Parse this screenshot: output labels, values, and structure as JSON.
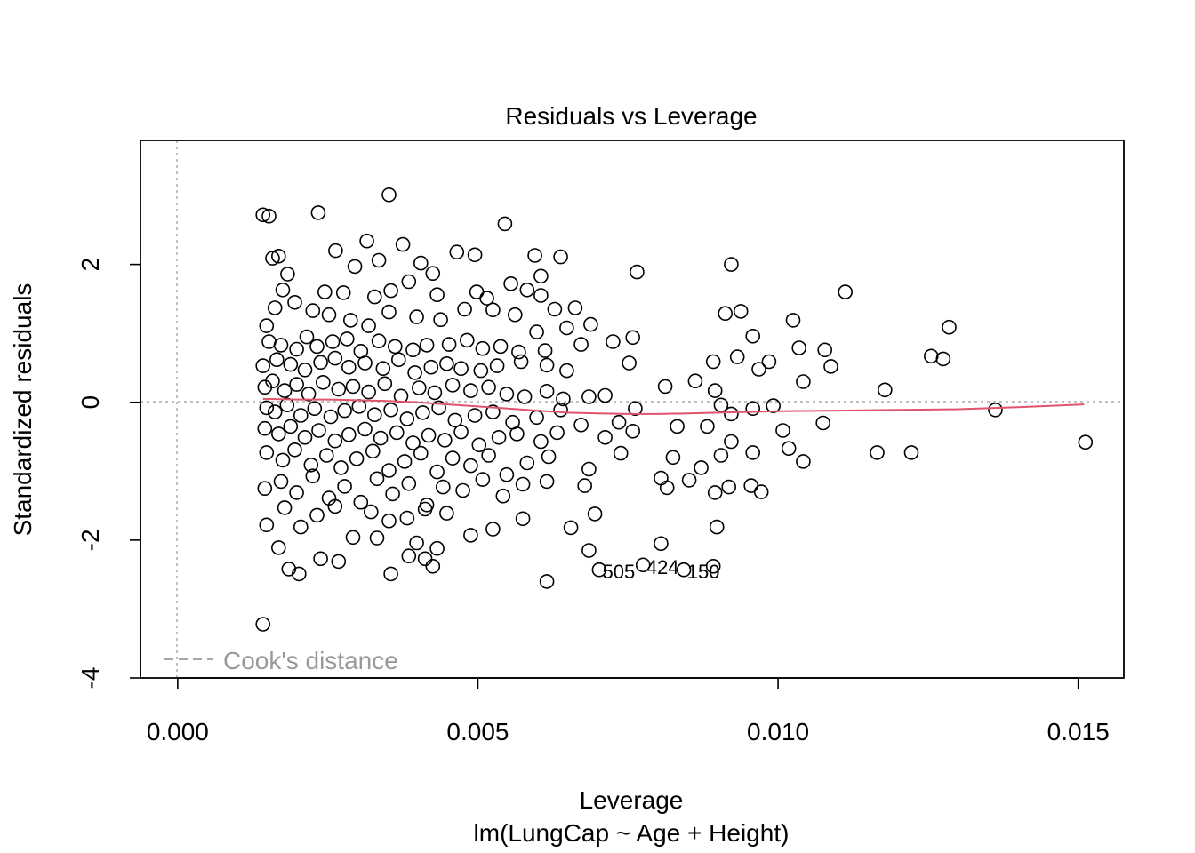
{
  "chart_data": {
    "type": "scatter",
    "title": "Residuals vs Leverage",
    "xlabel": "Leverage",
    "sublabel": "lm(LungCap ~ Age + Height)",
    "ylabel": "Standardized residuals",
    "xlim": [
      -0.00062,
      0.01576
    ],
    "ylim": [
      -4.0,
      3.8
    ],
    "x_ticks": [
      {
        "value": 0.0,
        "label": "0.000"
      },
      {
        "value": 0.005,
        "label": "0.005"
      },
      {
        "value": 0.01,
        "label": "0.010"
      },
      {
        "value": 0.015,
        "label": "0.015"
      }
    ],
    "y_ticks": [
      {
        "value": -4,
        "label": "-4"
      },
      {
        "value": -2,
        "label": "-2"
      },
      {
        "value": 0,
        "label": "0"
      },
      {
        "value": 2,
        "label": "2"
      }
    ],
    "reference_lines": {
      "h": 0,
      "v": 0,
      "color": "#aaaaaa"
    },
    "legend": {
      "label": "Cook's distance",
      "position": "bottom-left",
      "color": "#999999"
    },
    "smooth_color": "#DF536B",
    "smooth": [
      [
        0.00142,
        0.05
      ],
      [
        0.002,
        0.04
      ],
      [
        0.0025,
        0.04
      ],
      [
        0.003,
        0.03
      ],
      [
        0.0035,
        0.02
      ],
      [
        0.004,
        0.0
      ],
      [
        0.0045,
        -0.03
      ],
      [
        0.005,
        -0.06
      ],
      [
        0.0055,
        -0.09
      ],
      [
        0.006,
        -0.12
      ],
      [
        0.0065,
        -0.15
      ],
      [
        0.007,
        -0.16
      ],
      [
        0.0075,
        -0.17
      ],
      [
        0.008,
        -0.17
      ],
      [
        0.0085,
        -0.16
      ],
      [
        0.009,
        -0.15
      ],
      [
        0.0095,
        -0.14
      ],
      [
        0.01,
        -0.13
      ],
      [
        0.011,
        -0.12
      ],
      [
        0.012,
        -0.11
      ],
      [
        0.013,
        -0.1
      ],
      [
        0.014,
        -0.07
      ],
      [
        0.0151,
        -0.03
      ]
    ],
    "labeled_points": [
      {
        "id": "505",
        "x": 0.00702,
        "y": -2.43
      },
      {
        "id": "424",
        "x": 0.00775,
        "y": -2.36
      },
      {
        "id": "150",
        "x": 0.00843,
        "y": -2.43
      }
    ],
    "points": [
      [
        0.00142,
        -3.22
      ],
      [
        0.00142,
        2.72
      ],
      [
        0.00152,
        2.7
      ],
      [
        0.00234,
        2.75
      ],
      [
        0.00352,
        3.01
      ],
      [
        0.00545,
        2.59
      ],
      [
        0.00158,
        2.09
      ],
      [
        0.00168,
        2.12
      ],
      [
        0.00263,
        2.2
      ],
      [
        0.00315,
        2.34
      ],
      [
        0.00375,
        2.29
      ],
      [
        0.00405,
        2.02
      ],
      [
        0.00465,
        2.18
      ],
      [
        0.00495,
        2.14
      ],
      [
        0.00595,
        2.13
      ],
      [
        0.00638,
        2.11
      ],
      [
        0.00765,
        1.89
      ],
      [
        0.00922,
        2.0
      ],
      [
        0.01112,
        1.6
      ],
      [
        0.00183,
        1.86
      ],
      [
        0.00295,
        1.97
      ],
      [
        0.00335,
        2.06
      ],
      [
        0.00425,
        1.87
      ],
      [
        0.00605,
        1.83
      ],
      [
        0.00175,
        1.63
      ],
      [
        0.00245,
        1.6
      ],
      [
        0.00276,
        1.59
      ],
      [
        0.00328,
        1.53
      ],
      [
        0.00355,
        1.62
      ],
      [
        0.00385,
        1.75
      ],
      [
        0.00432,
        1.56
      ],
      [
        0.00498,
        1.6
      ],
      [
        0.00515,
        1.51
      ],
      [
        0.00555,
        1.72
      ],
      [
        0.00582,
        1.63
      ],
      [
        0.00605,
        1.55
      ],
      [
        0.00628,
        1.35
      ],
      [
        0.00662,
        1.37
      ],
      [
        0.00148,
        1.11
      ],
      [
        0.00162,
        1.37
      ],
      [
        0.00195,
        1.45
      ],
      [
        0.00225,
        1.33
      ],
      [
        0.00252,
        1.27
      ],
      [
        0.00288,
        1.19
      ],
      [
        0.00318,
        1.11
      ],
      [
        0.00352,
        1.31
      ],
      [
        0.00398,
        1.24
      ],
      [
        0.00438,
        1.2
      ],
      [
        0.00478,
        1.35
      ],
      [
        0.00525,
        1.34
      ],
      [
        0.00562,
        1.27
      ],
      [
        0.00598,
        1.02
      ],
      [
        0.00648,
        1.08
      ],
      [
        0.00688,
        1.13
      ],
      [
        0.00912,
        1.29
      ],
      [
        0.00938,
        1.32
      ],
      [
        0.01025,
        1.19
      ],
      [
        0.01285,
        1.09
      ],
      [
        0.00152,
        0.88
      ],
      [
        0.00172,
        0.83
      ],
      [
        0.00198,
        0.77
      ],
      [
        0.00215,
        0.95
      ],
      [
        0.00232,
        0.81
      ],
      [
        0.00258,
        0.88
      ],
      [
        0.00282,
        0.92
      ],
      [
        0.00305,
        0.74
      ],
      [
        0.00335,
        0.89
      ],
      [
        0.00362,
        0.81
      ],
      [
        0.00392,
        0.76
      ],
      [
        0.00415,
        0.83
      ],
      [
        0.00452,
        0.84
      ],
      [
        0.00482,
        0.9
      ],
      [
        0.00508,
        0.78
      ],
      [
        0.00538,
        0.81
      ],
      [
        0.00568,
        0.73
      ],
      [
        0.00612,
        0.75
      ],
      [
        0.00672,
        0.84
      ],
      [
        0.00725,
        0.88
      ],
      [
        0.00758,
        0.94
      ],
      [
        0.00958,
        0.96
      ],
      [
        0.01035,
        0.79
      ],
      [
        0.01078,
        0.76
      ],
      [
        0.01255,
        0.67
      ],
      [
        0.00142,
        0.53
      ],
      [
        0.00165,
        0.62
      ],
      [
        0.00188,
        0.55
      ],
      [
        0.00212,
        0.47
      ],
      [
        0.00238,
        0.58
      ],
      [
        0.00262,
        0.64
      ],
      [
        0.00285,
        0.51
      ],
      [
        0.00312,
        0.57
      ],
      [
        0.00342,
        0.49
      ],
      [
        0.00368,
        0.62
      ],
      [
        0.00395,
        0.43
      ],
      [
        0.00422,
        0.51
      ],
      [
        0.00448,
        0.56
      ],
      [
        0.00472,
        0.49
      ],
      [
        0.00505,
        0.46
      ],
      [
        0.00532,
        0.53
      ],
      [
        0.00572,
        0.59
      ],
      [
        0.00615,
        0.54
      ],
      [
        0.00648,
        0.46
      ],
      [
        0.00752,
        0.57
      ],
      [
        0.00892,
        0.59
      ],
      [
        0.00932,
        0.66
      ],
      [
        0.00968,
        0.48
      ],
      [
        0.00985,
        0.59
      ],
      [
        0.01088,
        0.52
      ],
      [
        0.01275,
        0.63
      ],
      [
        0.00145,
        0.22
      ],
      [
        0.00158,
        0.31
      ],
      [
        0.00178,
        0.17
      ],
      [
        0.00198,
        0.26
      ],
      [
        0.00218,
        0.12
      ],
      [
        0.00242,
        0.29
      ],
      [
        0.00268,
        0.19
      ],
      [
        0.00292,
        0.23
      ],
      [
        0.00318,
        0.15
      ],
      [
        0.00345,
        0.27
      ],
      [
        0.00372,
        0.09
      ],
      [
        0.00402,
        0.21
      ],
      [
        0.00428,
        0.14
      ],
      [
        0.00458,
        0.25
      ],
      [
        0.00488,
        0.17
      ],
      [
        0.00518,
        0.22
      ],
      [
        0.00548,
        0.12
      ],
      [
        0.00578,
        0.08
      ],
      [
        0.00615,
        0.16
      ],
      [
        0.00642,
        0.05
      ],
      [
        0.00685,
        0.08
      ],
      [
        0.00712,
        0.1
      ],
      [
        0.00812,
        0.23
      ],
      [
        0.00862,
        0.31
      ],
      [
        0.00895,
        0.17
      ],
      [
        0.01042,
        0.3
      ],
      [
        0.01178,
        0.18
      ],
      [
        0.00148,
        -0.08
      ],
      [
        0.00162,
        -0.14
      ],
      [
        0.00182,
        -0.04
      ],
      [
        0.00205,
        -0.19
      ],
      [
        0.00228,
        -0.09
      ],
      [
        0.00255,
        -0.21
      ],
      [
        0.00278,
        -0.12
      ],
      [
        0.00302,
        -0.06
      ],
      [
        0.00328,
        -0.18
      ],
      [
        0.00355,
        -0.11
      ],
      [
        0.00382,
        -0.24
      ],
      [
        0.00408,
        -0.15
      ],
      [
        0.00435,
        -0.08
      ],
      [
        0.00462,
        -0.26
      ],
      [
        0.00495,
        -0.19
      ],
      [
        0.00525,
        -0.14
      ],
      [
        0.00558,
        -0.29
      ],
      [
        0.00598,
        -0.22
      ],
      [
        0.00638,
        -0.11
      ],
      [
        0.00672,
        -0.33
      ],
      [
        0.00735,
        -0.29
      ],
      [
        0.00762,
        -0.09
      ],
      [
        0.00905,
        -0.04
      ],
      [
        0.00922,
        -0.17
      ],
      [
        0.00958,
        -0.09
      ],
      [
        0.00992,
        -0.05
      ],
      [
        0.01075,
        -0.3
      ],
      [
        0.01362,
        -0.11
      ],
      [
        0.00145,
        -0.38
      ],
      [
        0.00168,
        -0.46
      ],
      [
        0.00188,
        -0.35
      ],
      [
        0.00212,
        -0.51
      ],
      [
        0.00235,
        -0.41
      ],
      [
        0.00262,
        -0.56
      ],
      [
        0.00285,
        -0.47
      ],
      [
        0.00312,
        -0.39
      ],
      [
        0.00338,
        -0.52
      ],
      [
        0.00365,
        -0.44
      ],
      [
        0.00392,
        -0.59
      ],
      [
        0.00418,
        -0.48
      ],
      [
        0.00445,
        -0.55
      ],
      [
        0.00472,
        -0.43
      ],
      [
        0.00502,
        -0.62
      ],
      [
        0.00535,
        -0.51
      ],
      [
        0.00565,
        -0.46
      ],
      [
        0.00605,
        -0.57
      ],
      [
        0.00632,
        -0.44
      ],
      [
        0.00712,
        -0.51
      ],
      [
        0.00758,
        -0.42
      ],
      [
        0.00832,
        -0.35
      ],
      [
        0.00882,
        -0.35
      ],
      [
        0.00922,
        -0.57
      ],
      [
        0.01008,
        -0.41
      ],
      [
        0.01512,
        -0.58
      ],
      [
        0.00148,
        -0.73
      ],
      [
        0.00175,
        -0.84
      ],
      [
        0.00195,
        -0.69
      ],
      [
        0.00222,
        -0.91
      ],
      [
        0.00248,
        -0.77
      ],
      [
        0.00272,
        -0.95
      ],
      [
        0.00298,
        -0.82
      ],
      [
        0.00325,
        -0.71
      ],
      [
        0.00352,
        -0.99
      ],
      [
        0.00378,
        -0.86
      ],
      [
        0.00405,
        -0.74
      ],
      [
        0.00432,
        -1.01
      ],
      [
        0.00458,
        -0.81
      ],
      [
        0.00488,
        -0.92
      ],
      [
        0.00518,
        -0.77
      ],
      [
        0.00548,
        -1.05
      ],
      [
        0.00582,
        -0.88
      ],
      [
        0.00618,
        -0.79
      ],
      [
        0.00685,
        -0.97
      ],
      [
        0.00738,
        -0.74
      ],
      [
        0.00825,
        -0.8
      ],
      [
        0.00872,
        -0.95
      ],
      [
        0.00905,
        -0.77
      ],
      [
        0.00958,
        -0.73
      ],
      [
        0.01018,
        -0.67
      ],
      [
        0.01042,
        -0.86
      ],
      [
        0.01165,
        -0.73
      ],
      [
        0.01222,
        -0.73
      ],
      [
        0.00145,
        -1.25
      ],
      [
        0.00172,
        -1.15
      ],
      [
        0.00198,
        -1.31
      ],
      [
        0.00225,
        -1.07
      ],
      [
        0.00252,
        -1.39
      ],
      [
        0.00278,
        -1.22
      ],
      [
        0.00305,
        -1.45
      ],
      [
        0.00332,
        -1.11
      ],
      [
        0.00358,
        -1.33
      ],
      [
        0.00385,
        -1.18
      ],
      [
        0.00415,
        -1.49
      ],
      [
        0.00442,
        -1.23
      ],
      [
        0.00475,
        -1.28
      ],
      [
        0.00508,
        -1.12
      ],
      [
        0.00542,
        -1.36
      ],
      [
        0.00575,
        -1.19
      ],
      [
        0.00615,
        -1.15
      ],
      [
        0.00678,
        -1.21
      ],
      [
        0.00805,
        -1.1
      ],
      [
        0.00815,
        -1.24
      ],
      [
        0.00852,
        -1.13
      ],
      [
        0.00895,
        -1.31
      ],
      [
        0.00918,
        -1.23
      ],
      [
        0.00955,
        -1.21
      ],
      [
        0.00972,
        -1.3
      ],
      [
        0.00148,
        -1.78
      ],
      [
        0.00178,
        -1.53
      ],
      [
        0.00205,
        -1.81
      ],
      [
        0.00232,
        -1.64
      ],
      [
        0.00262,
        -1.51
      ],
      [
        0.00292,
        -1.96
      ],
      [
        0.00322,
        -1.59
      ],
      [
        0.00352,
        -1.72
      ],
      [
        0.00382,
        -1.68
      ],
      [
        0.00412,
        -1.55
      ],
      [
        0.00448,
        -1.61
      ],
      [
        0.00488,
        -1.93
      ],
      [
        0.00525,
        -1.84
      ],
      [
        0.00575,
        -1.69
      ],
      [
        0.00655,
        -1.82
      ],
      [
        0.00695,
        -1.62
      ],
      [
        0.00898,
        -1.81
      ],
      [
        0.00168,
        -2.11
      ],
      [
        0.00185,
        -2.42
      ],
      [
        0.00202,
        -2.49
      ],
      [
        0.00238,
        -2.27
      ],
      [
        0.00268,
        -2.31
      ],
      [
        0.00332,
        -1.97
      ],
      [
        0.00355,
        -2.49
      ],
      [
        0.00385,
        -2.23
      ],
      [
        0.00398,
        -2.04
      ],
      [
        0.00412,
        -2.27
      ],
      [
        0.00425,
        -2.38
      ],
      [
        0.00432,
        -2.12
      ],
      [
        0.00615,
        -2.6
      ],
      [
        0.00685,
        -2.15
      ],
      [
        0.00805,
        -2.05
      ],
      [
        0.00892,
        -2.38
      ]
    ]
  }
}
